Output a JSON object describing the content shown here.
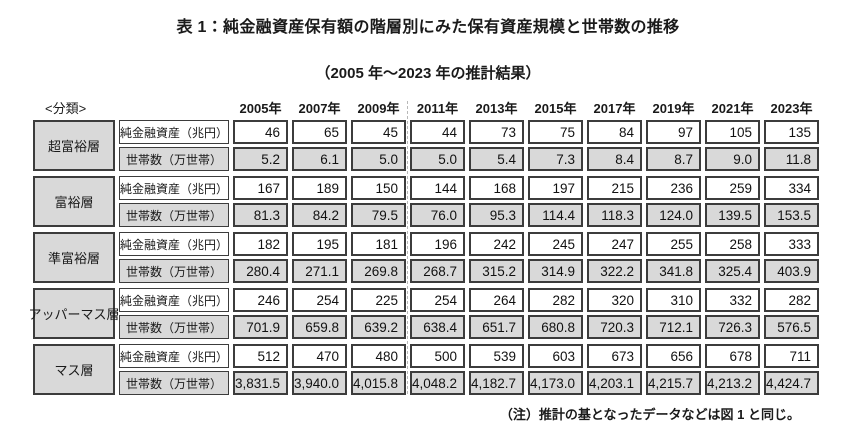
{
  "title": "表 1：純金融資産保有額の階層別にみた保有資産規模と世帯数の推移",
  "subtitle": "（2005 年～2023 年の推計結果）",
  "classification_label": "<分類>",
  "note": "（注）推計の基となったデータなどは図 1 と同じ。",
  "years": [
    "2005年",
    "2007年",
    "2009年",
    "2011年",
    "2013年",
    "2015年",
    "2017年",
    "2019年",
    "2021年",
    "2023年"
  ],
  "metric_labels": [
    "純金融資産（兆円）",
    "世帯数（万世帯）"
  ],
  "groups": [
    {
      "name": "超富裕層",
      "assets": [
        "46",
        "65",
        "45",
        "44",
        "73",
        "75",
        "84",
        "97",
        "105",
        "135"
      ],
      "households": [
        "5.2",
        "6.1",
        "5.0",
        "5.0",
        "5.4",
        "7.3",
        "8.4",
        "8.7",
        "9.0",
        "11.8"
      ]
    },
    {
      "name": "富裕層",
      "assets": [
        "167",
        "189",
        "150",
        "144",
        "168",
        "197",
        "215",
        "236",
        "259",
        "334"
      ],
      "households": [
        "81.3",
        "84.2",
        "79.5",
        "76.0",
        "95.3",
        "114.4",
        "118.3",
        "124.0",
        "139.5",
        "153.5"
      ]
    },
    {
      "name": "準富裕層",
      "assets": [
        "182",
        "195",
        "181",
        "196",
        "242",
        "245",
        "247",
        "255",
        "258",
        "333"
      ],
      "households": [
        "280.4",
        "271.1",
        "269.8",
        "268.7",
        "315.2",
        "314.9",
        "322.2",
        "341.8",
        "325.4",
        "403.9"
      ]
    },
    {
      "name": "アッパーマス層",
      "assets": [
        "246",
        "254",
        "225",
        "254",
        "264",
        "282",
        "320",
        "310",
        "332",
        "282"
      ],
      "households": [
        "701.9",
        "659.8",
        "639.2",
        "638.4",
        "651.7",
        "680.8",
        "720.3",
        "712.1",
        "726.3",
        "576.5"
      ]
    },
    {
      "name": "マス層",
      "assets": [
        "512",
        "470",
        "480",
        "500",
        "539",
        "603",
        "673",
        "656",
        "678",
        "711"
      ],
      "households": [
        "3,831.5",
        "3,940.0",
        "4,015.8",
        "4,048.2",
        "4,182.7",
        "4,173.0",
        "4,203.1",
        "4,215.7",
        "4,213.2",
        "4,424.7"
      ]
    }
  ],
  "colors": {
    "cell_gray": "#d9d9d9",
    "border_dark": "#3c3c3c",
    "page_break_dash": "#b8b8b8"
  }
}
